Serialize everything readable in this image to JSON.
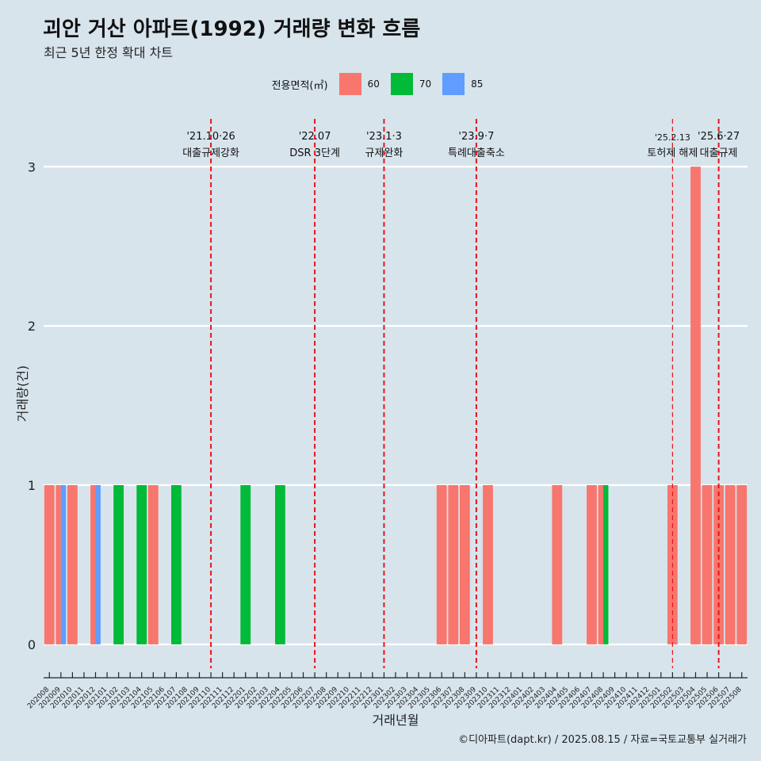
{
  "title": "괴안 거산 아파트(1992) 거래량 변화 흐름",
  "subtitle": "최근 5년 한정 확대 차트",
  "caption": "©디아파트(dapt.kr) / 2025.08.15 / 자료=국토교통부 실거래가",
  "colors": {
    "background": "#d7e4ec",
    "grid": "#ffffff",
    "event_line": "#e8141c",
    "s60": "#f8766d",
    "s70": "#00ba38",
    "s85": "#619cff"
  },
  "legend": {
    "title": "전용면적(㎡)",
    "items": [
      {
        "label": "60",
        "color": "#f8766d"
      },
      {
        "label": "70",
        "color": "#00ba38"
      },
      {
        "label": "85",
        "color": "#619cff"
      }
    ]
  },
  "chart_data": {
    "type": "bar",
    "title": "괴안 거산 아파트(1992) 거래량 변화 흐름",
    "xlabel": "거래년월",
    "ylabel": "거래량(건)",
    "ylim": [
      -0.15,
      3.3
    ],
    "yticks": [
      0,
      1,
      2,
      3
    ],
    "categories": [
      "202008",
      "202009",
      "202010",
      "202011",
      "202012",
      "202101",
      "202102",
      "202103",
      "202104",
      "202105",
      "202106",
      "202107",
      "202108",
      "202109",
      "202110",
      "202111",
      "202112",
      "202201",
      "202202",
      "202203",
      "202204",
      "202205",
      "202206",
      "202207",
      "202208",
      "202209",
      "202210",
      "202211",
      "202212",
      "202301",
      "202302",
      "202303",
      "202304",
      "202305",
      "202306",
      "202307",
      "202308",
      "202309",
      "202310",
      "202311",
      "202312",
      "202401",
      "202402",
      "202403",
      "202404",
      "202405",
      "202406",
      "202407",
      "202408",
      "202409",
      "202410",
      "202411",
      "202412",
      "202501",
      "202502",
      "202503",
      "202504",
      "202505",
      "202506",
      "202507",
      "202508"
    ],
    "bars": [
      {
        "month": "202008",
        "area": "60",
        "value": 1
      },
      {
        "month": "202009",
        "area": "60",
        "value": 1
      },
      {
        "month": "202009",
        "area": "85",
        "value": 1
      },
      {
        "month": "202010",
        "area": "60",
        "value": 1
      },
      {
        "month": "202012",
        "area": "60",
        "value": 1
      },
      {
        "month": "202012",
        "area": "85",
        "value": 1
      },
      {
        "month": "202102",
        "area": "70",
        "value": 1
      },
      {
        "month": "202104",
        "area": "70",
        "value": 1
      },
      {
        "month": "202105",
        "area": "60",
        "value": 1
      },
      {
        "month": "202107",
        "area": "70",
        "value": 1
      },
      {
        "month": "202201",
        "area": "70",
        "value": 1
      },
      {
        "month": "202204",
        "area": "70",
        "value": 1
      },
      {
        "month": "202306",
        "area": "60",
        "value": 1
      },
      {
        "month": "202307",
        "area": "60",
        "value": 1
      },
      {
        "month": "202308",
        "area": "60",
        "value": 1
      },
      {
        "month": "202310",
        "area": "60",
        "value": 1
      },
      {
        "month": "202404",
        "area": "60",
        "value": 1
      },
      {
        "month": "202407",
        "area": "60",
        "value": 1
      },
      {
        "month": "202408",
        "area": "60",
        "value": 1
      },
      {
        "month": "202408",
        "area": "70",
        "value": 1
      },
      {
        "month": "202502",
        "area": "60",
        "value": 1
      },
      {
        "month": "202504",
        "area": "60",
        "value": 3
      },
      {
        "month": "202505",
        "area": "60",
        "value": 1
      },
      {
        "month": "202506",
        "area": "60",
        "value": 1
      },
      {
        "month": "202507",
        "area": "60",
        "value": 1
      },
      {
        "month": "202508",
        "area": "60",
        "value": 1
      }
    ],
    "events": [
      {
        "month": "202110",
        "date": "'21.10·26",
        "label": "대출규제강화",
        "style": "bold"
      },
      {
        "month": "202207",
        "date": "'22.07",
        "label": "DSR 3단계",
        "style": "bold"
      },
      {
        "month": "202301",
        "date": "'23.1·3",
        "label": "규제완화",
        "style": "bold"
      },
      {
        "month": "202309",
        "date": "'23.9·7",
        "label": "특례대출축소",
        "style": "bold"
      },
      {
        "month": "202502",
        "date": "'25.2.13",
        "label": "토허제 해제",
        "style": "thin"
      },
      {
        "month": "202506",
        "date": "'25.6·27",
        "label": "대출규제",
        "style": "bold"
      }
    ]
  }
}
